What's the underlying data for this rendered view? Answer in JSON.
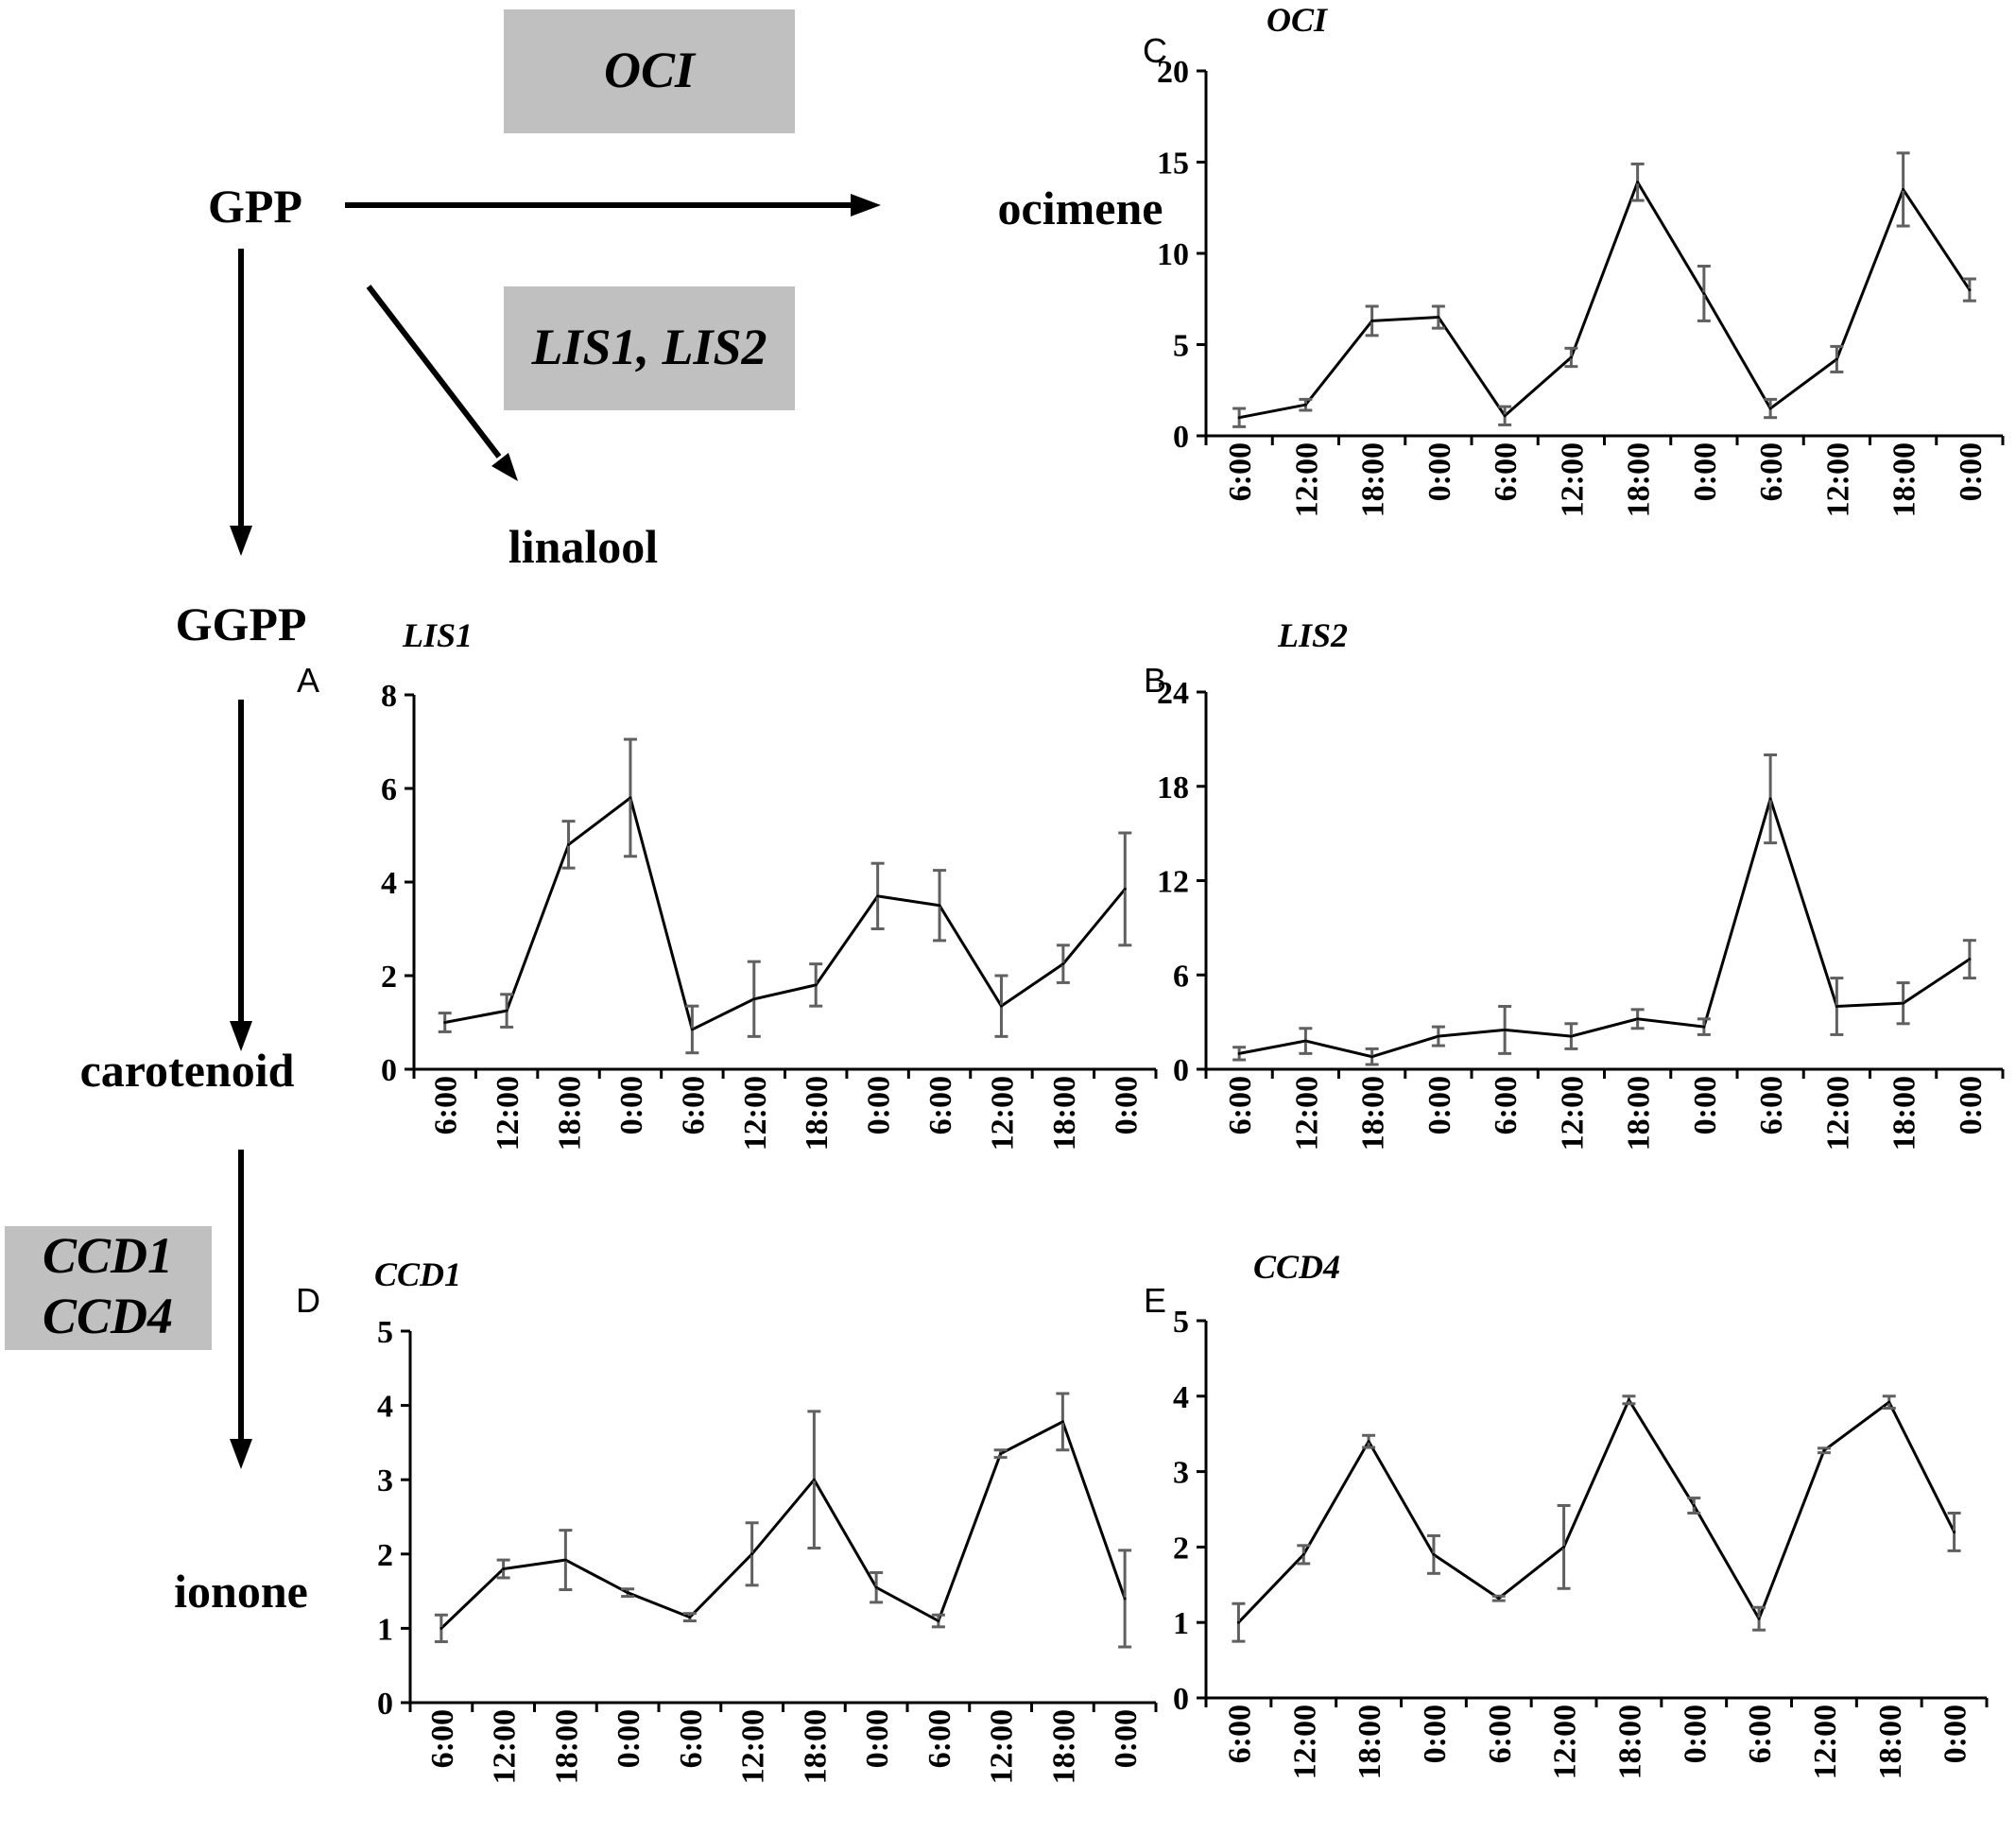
{
  "pathway": {
    "compounds": {
      "gpp": "GPP",
      "ocimene": "ocimene",
      "linalool": "linalool",
      "ggpp": "GGPP",
      "carotenoid": "carotenoid",
      "ionone": "ionone"
    },
    "enzymes": {
      "oci": "OCI",
      "lis": "LIS1, LIS2",
      "ccd1": "CCD1",
      "ccd4": "CCD4"
    }
  },
  "chart_data": [
    {
      "id": "C",
      "panel_letter": "C",
      "type": "line",
      "title": "OCI",
      "categories": [
        "6:00",
        "12:00",
        "18:00",
        "0:00",
        "6:00",
        "12:00",
        "18:00",
        "0:00",
        "6:00",
        "12:00",
        "18:00",
        "0:00"
      ],
      "yticks": [
        0,
        5,
        10,
        15,
        20
      ],
      "ylim": [
        0,
        20
      ],
      "series": [
        {
          "name": "OCI",
          "values": [
            1.0,
            1.7,
            6.3,
            6.5,
            1.1,
            4.3,
            13.9,
            7.8,
            1.5,
            4.2,
            13.5,
            8.0
          ],
          "errors": [
            0.5,
            0.3,
            0.8,
            0.6,
            0.5,
            0.5,
            1.0,
            1.5,
            0.5,
            0.7,
            2.0,
            0.6
          ]
        }
      ]
    },
    {
      "id": "A",
      "panel_letter": "A",
      "type": "line",
      "title": "LIS1",
      "categories": [
        "6:00",
        "12:00",
        "18:00",
        "0:00",
        "6:00",
        "12:00",
        "18:00",
        "0:00",
        "6:00",
        "12:00",
        "18:00",
        "0:00"
      ],
      "yticks": [
        0,
        2,
        4,
        6,
        8
      ],
      "ylim": [
        0,
        8
      ],
      "series": [
        {
          "name": "LIS1",
          "values": [
            1.0,
            1.25,
            4.8,
            5.8,
            0.85,
            1.5,
            1.8,
            3.7,
            3.5,
            1.35,
            2.25,
            3.85
          ],
          "errors": [
            0.2,
            0.35,
            0.5,
            1.25,
            0.5,
            0.8,
            0.45,
            0.7,
            0.75,
            0.65,
            0.4,
            1.2
          ]
        }
      ]
    },
    {
      "id": "B",
      "panel_letter": "B",
      "type": "line",
      "title": "LIS2",
      "categories": [
        "6:00",
        "12:00",
        "18:00",
        "0:00",
        "6:00",
        "12:00",
        "18:00",
        "0:00",
        "6:00",
        "12:00",
        "18:00",
        "0:00"
      ],
      "yticks": [
        0,
        6,
        12,
        18,
        24
      ],
      "ylim": [
        0,
        24
      ],
      "series": [
        {
          "name": "LIS2",
          "values": [
            1.0,
            1.8,
            0.8,
            2.1,
            2.5,
            2.1,
            3.2,
            2.7,
            17.2,
            4.0,
            4.2,
            7.0
          ],
          "errors": [
            0.4,
            0.8,
            0.5,
            0.6,
            1.5,
            0.8,
            0.6,
            0.5,
            2.8,
            1.8,
            1.3,
            1.2
          ]
        }
      ]
    },
    {
      "id": "D",
      "panel_letter": "D",
      "type": "line",
      "title": "CCD1",
      "categories": [
        "6:00",
        "12:00",
        "18:00",
        "0:00",
        "6:00",
        "12:00",
        "18:00",
        "0:00",
        "6:00",
        "12:00",
        "18:00",
        "0:00"
      ],
      "yticks": [
        0,
        1,
        2,
        3,
        4,
        5
      ],
      "ylim": [
        0,
        5
      ],
      "series": [
        {
          "name": "CCD1",
          "values": [
            1.0,
            1.8,
            1.92,
            1.48,
            1.15,
            2.0,
            3.0,
            1.55,
            1.1,
            3.35,
            3.78,
            1.4
          ],
          "errors": [
            0.18,
            0.12,
            0.4,
            0.05,
            0.05,
            0.42,
            0.92,
            0.2,
            0.08,
            0.05,
            0.38,
            0.65
          ]
        }
      ]
    },
    {
      "id": "E",
      "panel_letter": "E",
      "type": "line",
      "title": "CCD4",
      "categories": [
        "6:00",
        "12:00",
        "18:00",
        "0:00",
        "6:00",
        "12:00",
        "18:00",
        "0:00",
        "6:00",
        "12:00",
        "18:00",
        "0:00"
      ],
      "yticks": [
        0,
        1,
        2,
        3,
        4,
        5
      ],
      "ylim": [
        0,
        5
      ],
      "series": [
        {
          "name": "CCD4",
          "values": [
            1.0,
            1.9,
            3.4,
            1.9,
            1.32,
            2.0,
            3.95,
            2.55,
            1.05,
            3.28,
            3.92,
            2.2
          ],
          "errors": [
            0.25,
            0.12,
            0.08,
            0.25,
            0.03,
            0.55,
            0.05,
            0.1,
            0.15,
            0.03,
            0.08,
            0.25
          ]
        }
      ]
    }
  ]
}
